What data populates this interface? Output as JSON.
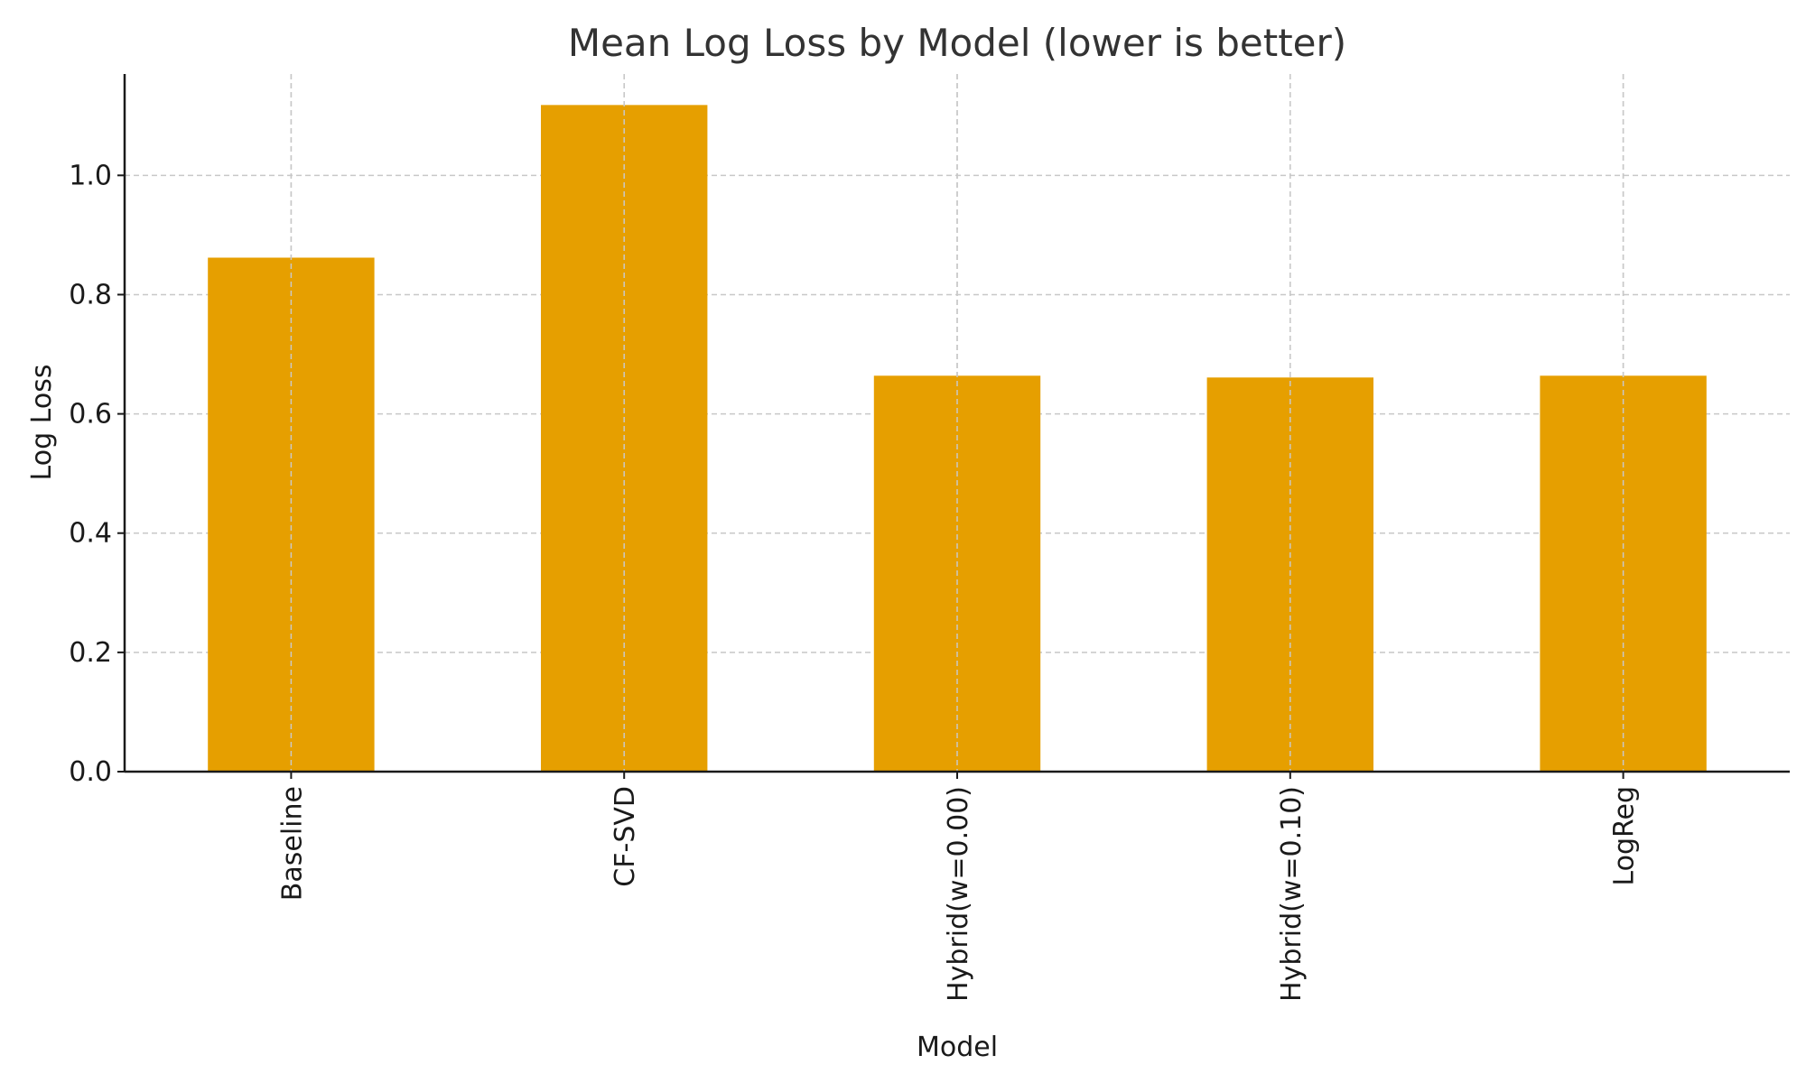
{
  "chart_data": {
    "type": "bar",
    "title": "Mean Log Loss by Model (lower is better)",
    "xlabel": "Model",
    "ylabel": "Log Loss",
    "categories": [
      "Baseline",
      "CF-SVD",
      "Hybrid(w=0.00)",
      "Hybrid(w=0.10)",
      "LogReg"
    ],
    "values": [
      0.862,
      1.118,
      0.664,
      0.661,
      0.664
    ],
    "ylim": [
      0,
      1.17
    ],
    "yticks": [
      "0.0",
      "0.2",
      "0.4",
      "0.6",
      "0.8",
      "1.0"
    ],
    "grid": true,
    "bar_color": "#E69F00"
  }
}
